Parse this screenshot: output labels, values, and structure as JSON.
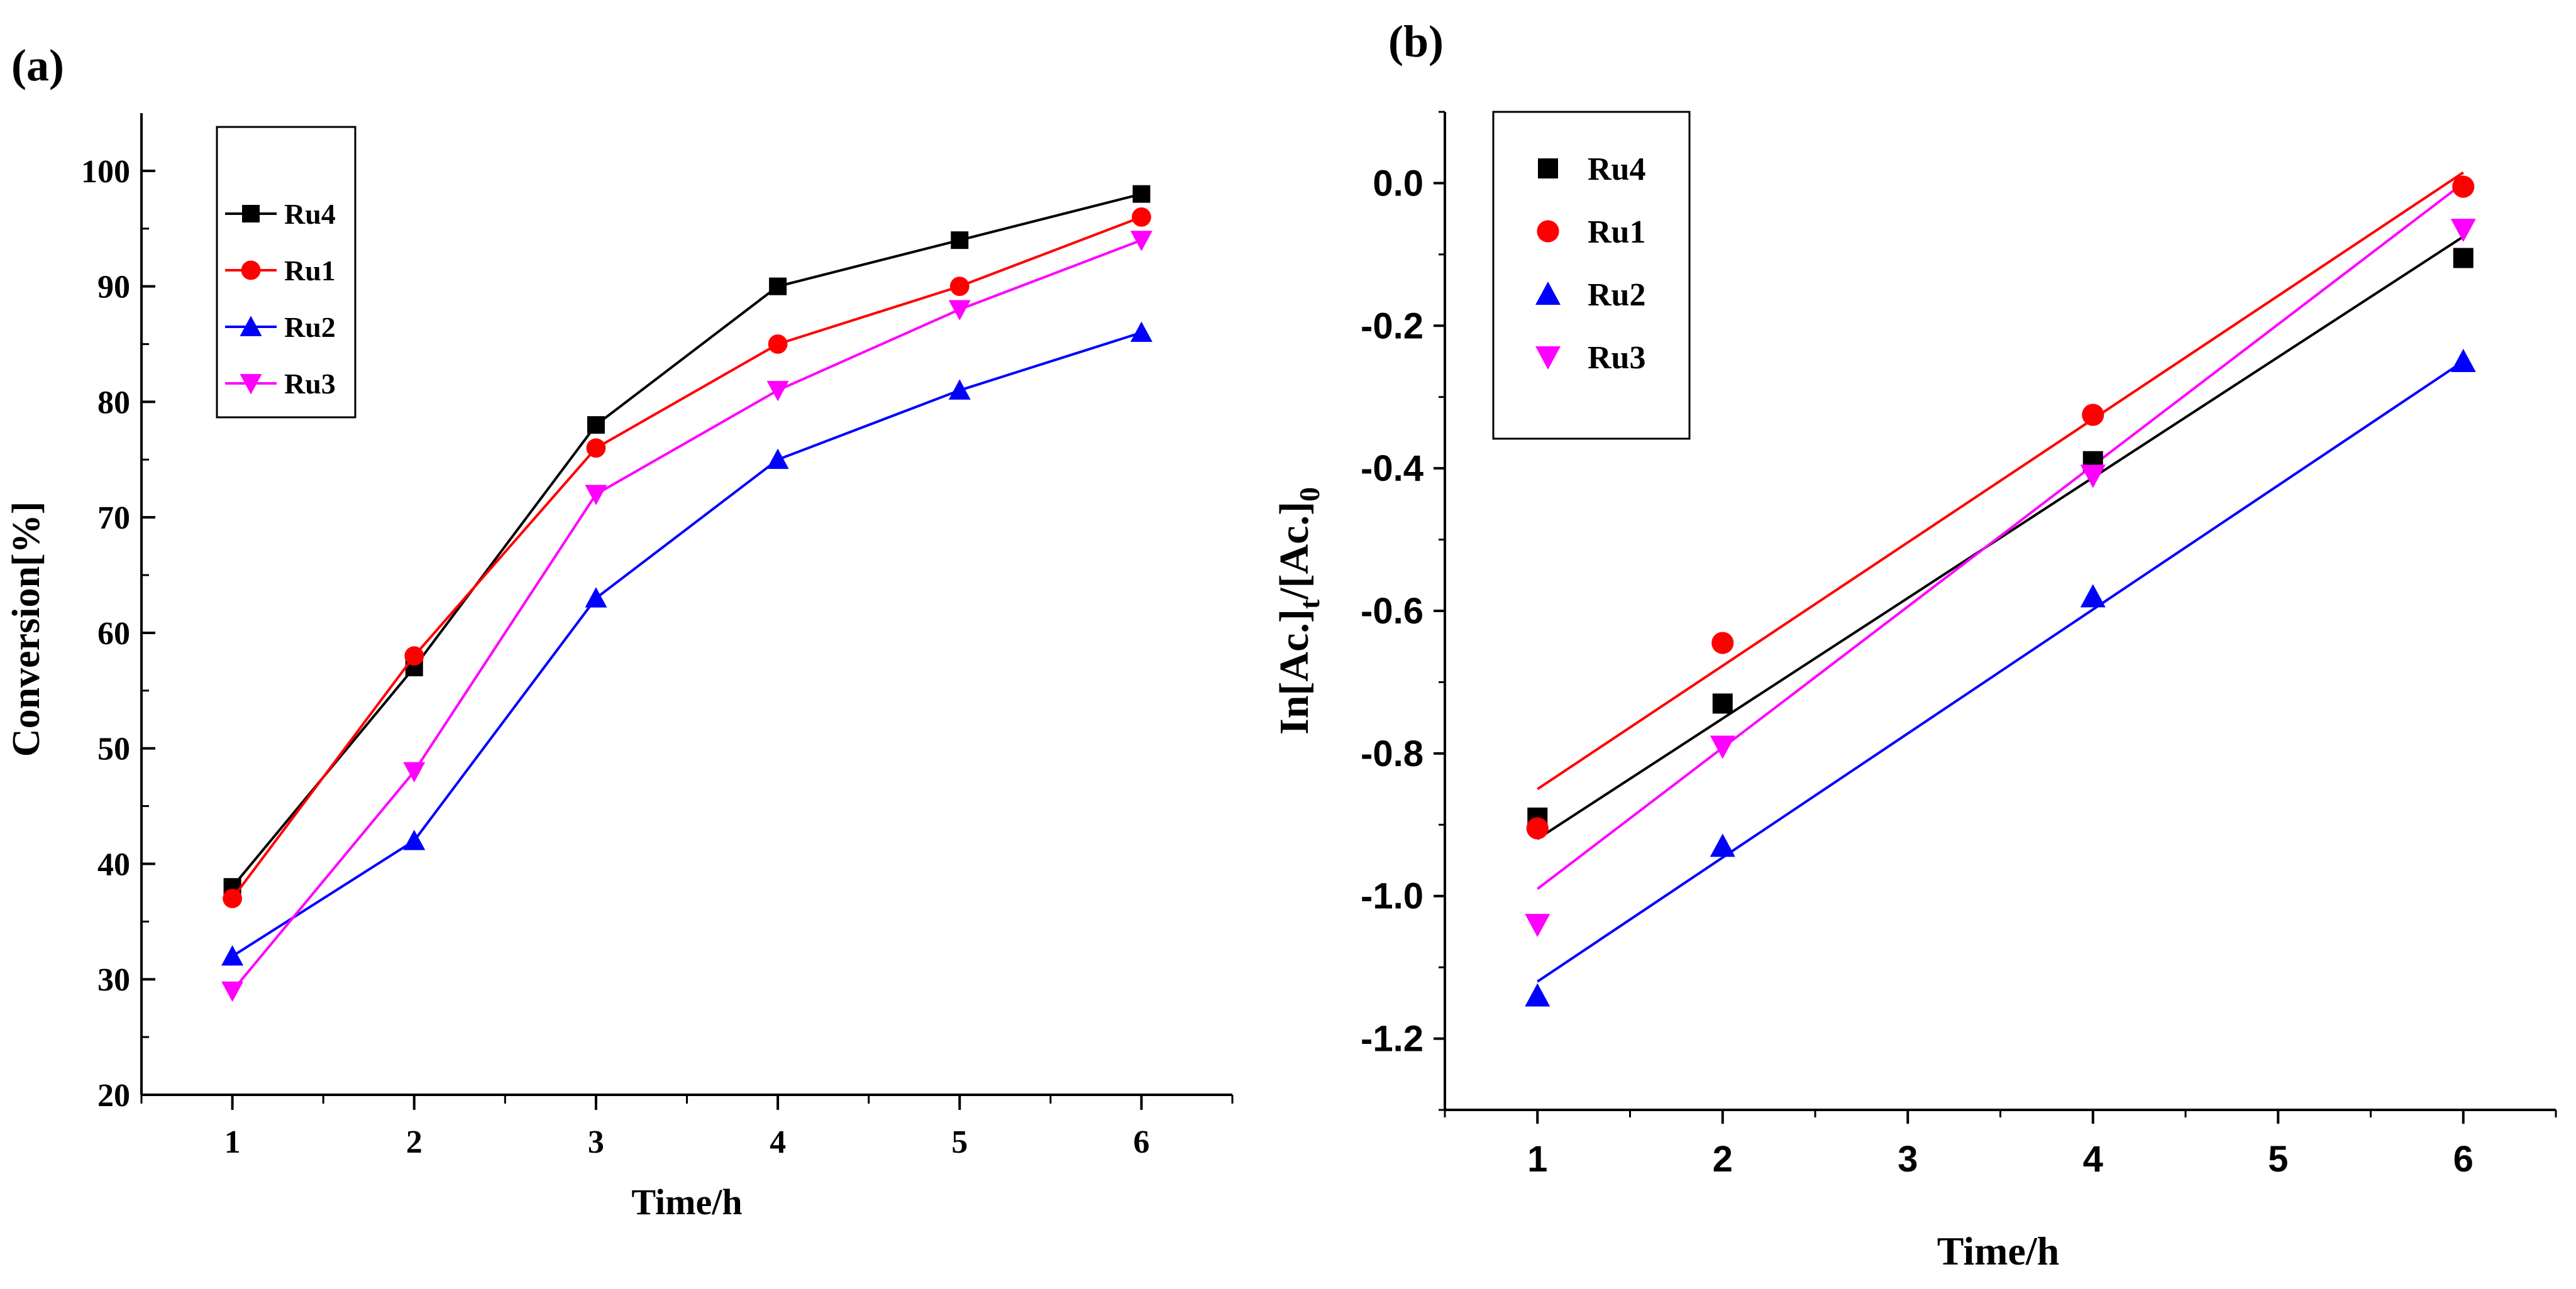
{
  "colors": {
    "Ru4": "#000000",
    "Ru1": "#ff0000",
    "Ru2": "#0000ff",
    "Ru3": "#ff00ff"
  },
  "chart_data": [
    {
      "panel_label": "(a)",
      "type": "line",
      "xlabel": "Time/h",
      "ylabel": "Conversion[%]",
      "x": [
        1,
        2,
        3,
        4,
        5,
        6
      ],
      "xlim": [
        0.5,
        6.5
      ],
      "ylim": [
        20,
        105
      ],
      "yticks": [
        20,
        30,
        40,
        50,
        60,
        70,
        80,
        90,
        100
      ],
      "legend_position": "top-left",
      "series": [
        {
          "name": "Ru4",
          "marker": "square",
          "values": [
            38,
            57,
            78,
            90,
            94,
            98
          ]
        },
        {
          "name": "Ru1",
          "marker": "circle",
          "values": [
            37,
            58,
            76,
            85,
            90,
            96
          ]
        },
        {
          "name": "Ru2",
          "marker": "triangle-up",
          "values": [
            32,
            42,
            63,
            75,
            81,
            86
          ]
        },
        {
          "name": "Ru3",
          "marker": "triangle-down",
          "values": [
            29,
            48,
            72,
            81,
            88,
            94
          ]
        }
      ]
    },
    {
      "panel_label": "(b)",
      "type": "scatter",
      "xlabel": "Time/h",
      "ylabel": "In[Ac.]t/[Ac.]0",
      "ylabel_parts": {
        "main": "In[Ac.]",
        "sub1": "t",
        "mid": "/[Ac.]",
        "sub2": "0"
      },
      "xlim": [
        0.5,
        6.5
      ],
      "ylim": [
        -1.3,
        0.1
      ],
      "xticks": [
        1,
        2,
        3,
        4,
        5,
        6
      ],
      "yticks": [
        0.0,
        -0.2,
        -0.4,
        -0.6,
        -0.8,
        -1.0,
        -1.2
      ],
      "ytick_labels": [
        "0.0",
        "-0.2",
        "-0.4",
        "-0.6",
        "-0.8",
        "-1.0",
        "-1.2"
      ],
      "legend_position": "top-left",
      "series": [
        {
          "name": "Ru4",
          "marker": "square",
          "x": [
            1,
            2,
            4,
            6
          ],
          "values": [
            -0.89,
            -0.73,
            -0.39,
            -0.105
          ],
          "fit": [
            [
              1,
              -0.92
            ],
            [
              6,
              -0.075
            ]
          ]
        },
        {
          "name": "Ru1",
          "marker": "circle",
          "x": [
            1,
            2,
            4,
            6
          ],
          "values": [
            -0.905,
            -0.645,
            -0.325,
            -0.005
          ],
          "fit": [
            [
              1,
              -0.85
            ],
            [
              6,
              0.015
            ]
          ]
        },
        {
          "name": "Ru2",
          "marker": "triangle-up",
          "x": [
            1,
            2,
            4,
            6
          ],
          "values": [
            -1.14,
            -0.93,
            -0.58,
            -0.25
          ],
          "fit": [
            [
              1,
              -1.12
            ],
            [
              6,
              -0.25
            ]
          ]
        },
        {
          "name": "Ru3",
          "marker": "triangle-down",
          "x": [
            1,
            2,
            4,
            6
          ],
          "values": [
            -1.04,
            -0.79,
            -0.41,
            -0.065
          ],
          "fit": [
            [
              1,
              -0.99
            ],
            [
              6,
              0.0
            ]
          ]
        }
      ]
    }
  ]
}
